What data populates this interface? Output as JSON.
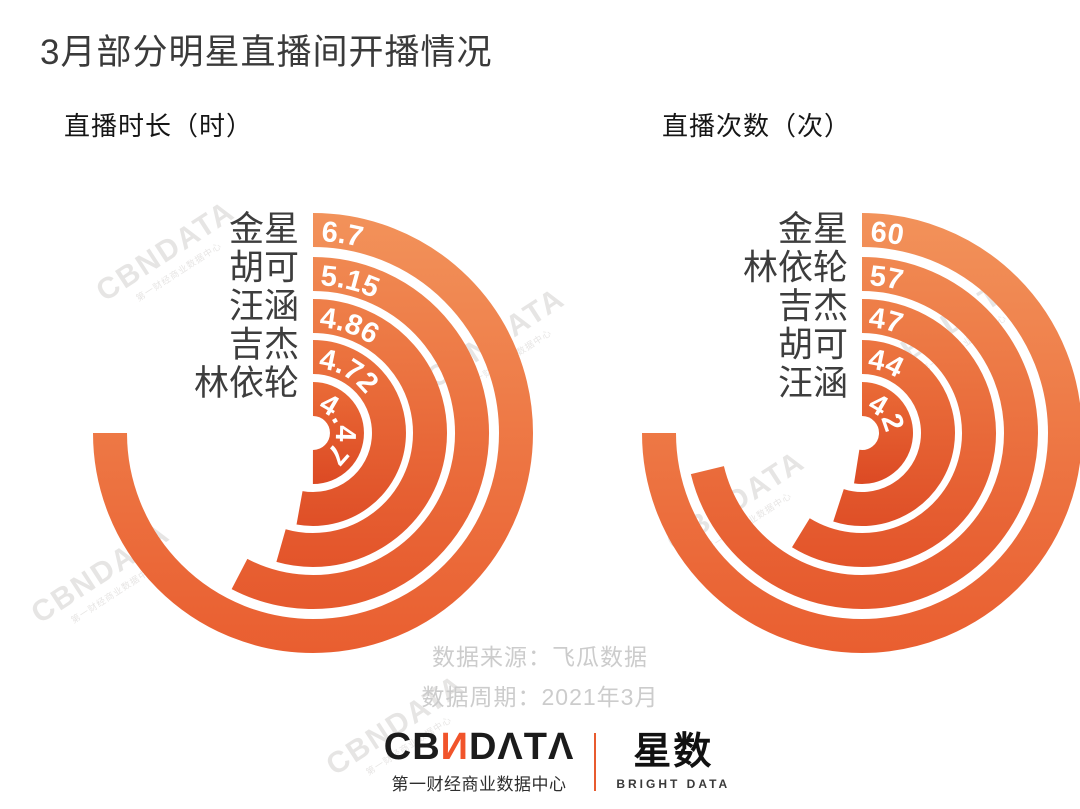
{
  "page": {
    "title": "3月部分明星直播间开播情况"
  },
  "chart_data": [
    {
      "type": "radial-bar",
      "title": "直播时长（时）",
      "unit": "时",
      "categories": [
        "金星",
        "胡可",
        "汪涵",
        "吉杰",
        "林依轮"
      ],
      "values": [
        6.7,
        5.15,
        4.86,
        4.72,
        4.47
      ],
      "value_labels": [
        "6.7",
        "5.15",
        "4.86",
        "4.72",
        "4.47"
      ],
      "start_angle_deg": 0,
      "direction": "clockwise",
      "max_sweep_deg": 270,
      "legend_position": "left-of-rings"
    },
    {
      "type": "radial-bar",
      "title": "直播次数（次）",
      "unit": "次",
      "categories": [
        "金星",
        "林依轮",
        "吉杰",
        "胡可",
        "汪涵"
      ],
      "values": [
        60,
        57,
        47,
        44,
        42
      ],
      "value_labels": [
        "60",
        "57",
        "47",
        "44",
        "42"
      ],
      "start_angle_deg": 0,
      "direction": "clockwise",
      "max_sweep_deg": 270,
      "legend_position": "left-of-rings"
    }
  ],
  "footer": {
    "source": "数据来源：飞瓜数据",
    "period": "数据周期：2021年3月"
  },
  "branding": {
    "cbn_prefix": "CB",
    "cbn_n": "И",
    "cbn_suffix": "DΛTΛ",
    "cbn_subtitle": "第一财经商业数据中心",
    "star_name": "星数",
    "star_subtitle": "BRIGHT DATA"
  },
  "watermark": {
    "text": "CBNDATA",
    "subtext": "第一财经商业数据中心"
  },
  "colors": {
    "bar_top_outer": "#F2925A",
    "bar_bottom_outer": "#E95E30",
    "bar_top_inner": "#EA6B37",
    "bar_bottom_inner": "#DC4A24",
    "logo_orange": "#F1542B",
    "divider_orange": "#E85B2F",
    "title_text": "#3a3a3a",
    "label_text": "#3d3d3d",
    "value_text": "#ffffff",
    "footer_text": "#cccccc",
    "watermark": "#d3d0ce"
  }
}
